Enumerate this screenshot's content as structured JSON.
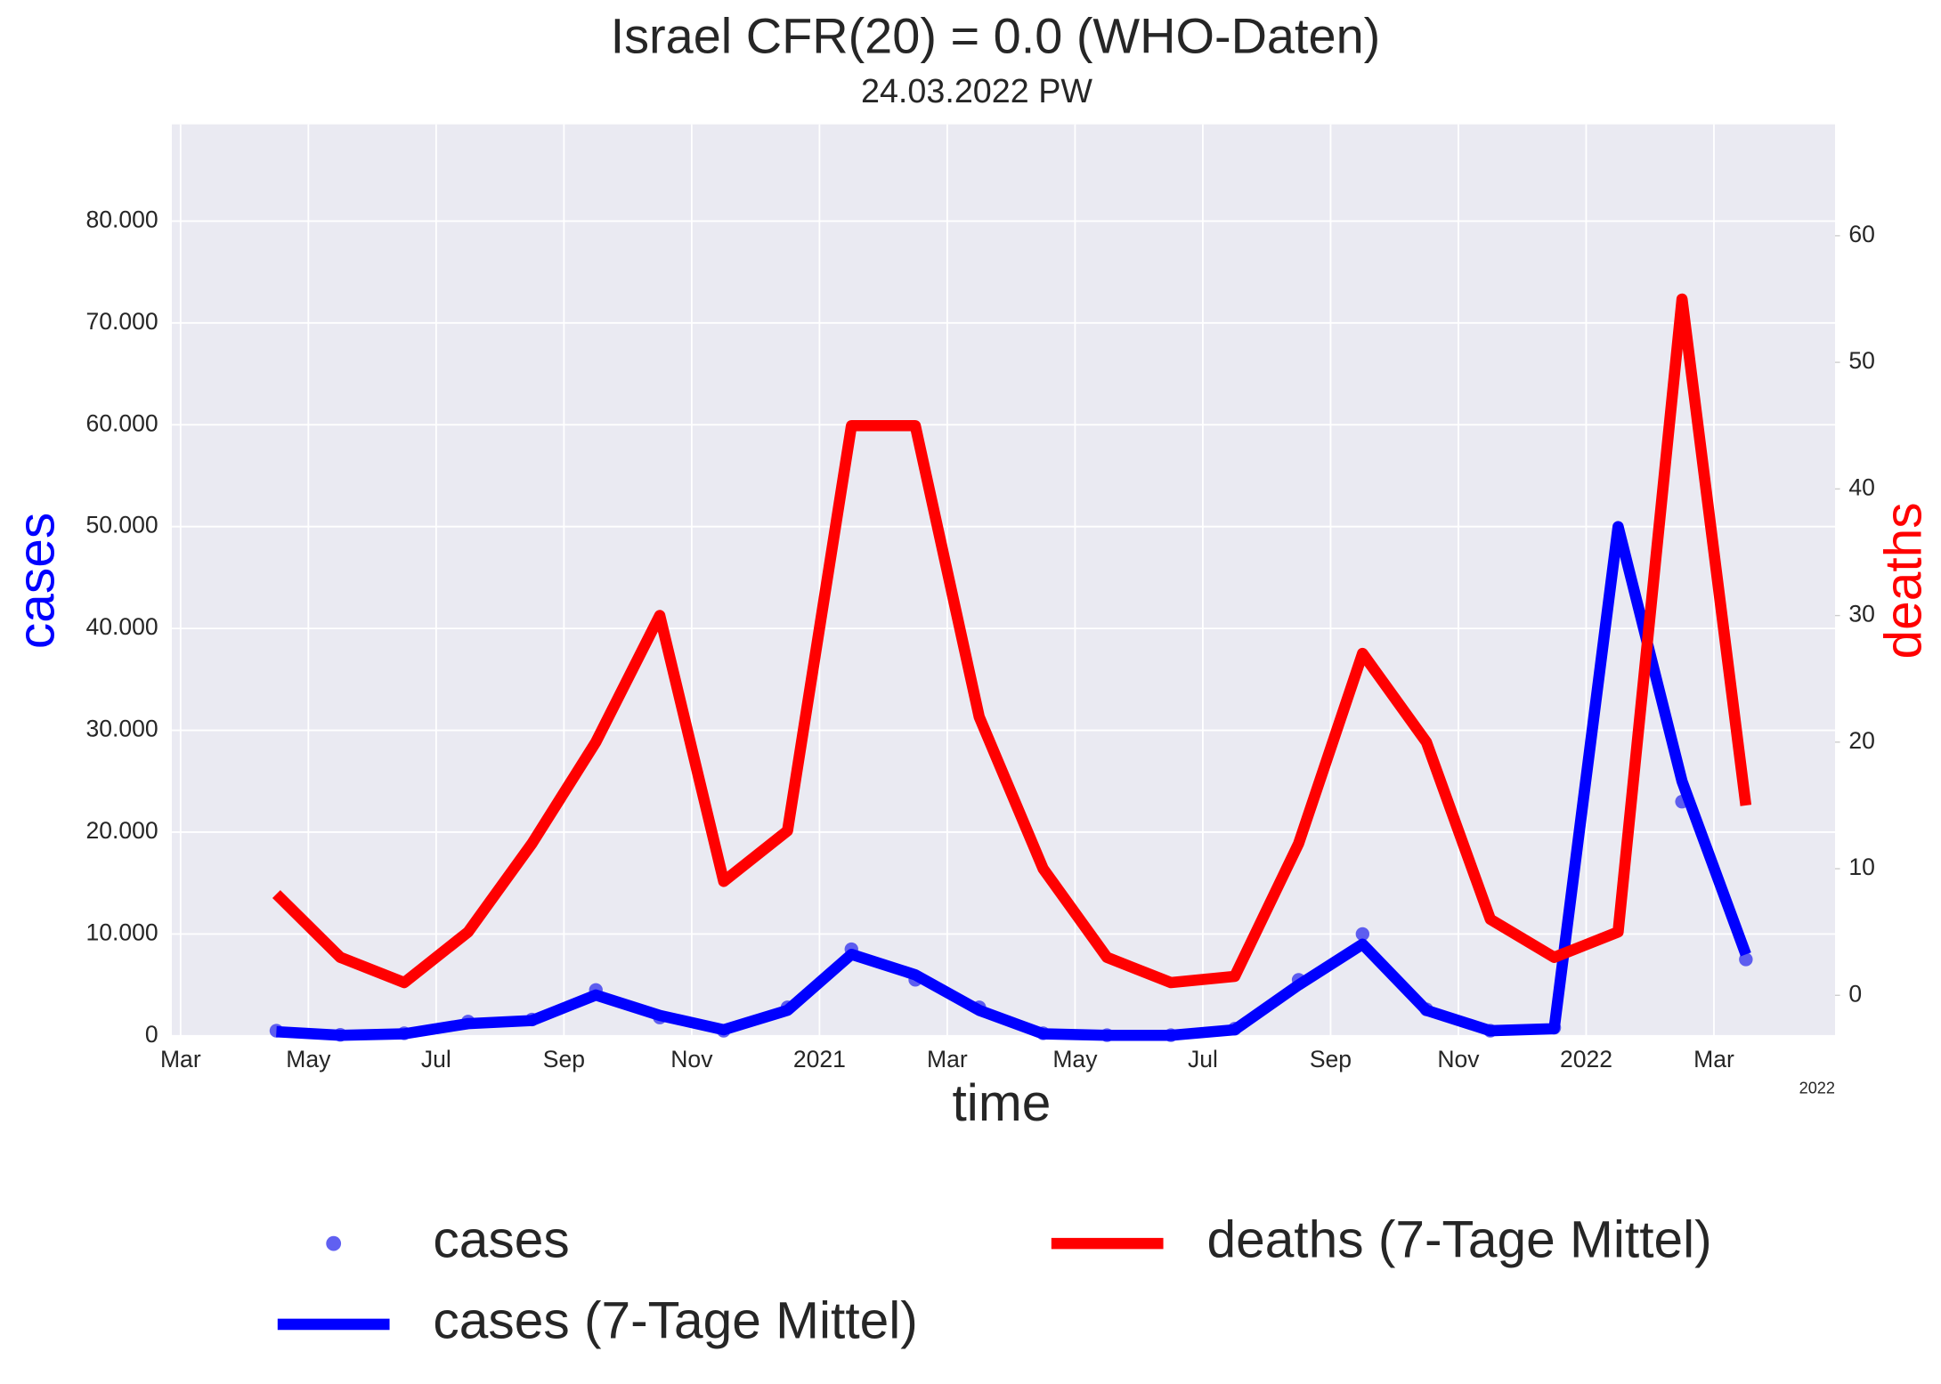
{
  "chart_data": {
    "type": "line",
    "title": "Israel CFR(20) = 0.0  (WHO-Daten)",
    "subtitle": "24.03.2022 PW",
    "x_label": "time",
    "y_label": "cases",
    "y2_label": "deaths",
    "x_offset_label": "2022",
    "x": [
      "2020-04",
      "2020-05",
      "2020-06",
      "2020-07",
      "2020-08",
      "2020-09",
      "2020-10",
      "2020-11",
      "2020-12",
      "2021-01",
      "2021-02",
      "2021-03",
      "2021-04",
      "2021-05",
      "2021-06",
      "2021-07",
      "2021-08",
      "2021-09",
      "2021-10",
      "2021-11",
      "2021-12",
      "2022-01",
      "2022-02",
      "2022-03"
    ],
    "xlim": [
      "2020-03",
      "2022-04"
    ],
    "xticks": [
      {
        "value": "2020-03",
        "label": "Mar"
      },
      {
        "value": "2020-05",
        "label": "May"
      },
      {
        "value": "2020-07",
        "label": "Jul"
      },
      {
        "value": "2020-09",
        "label": "Sep"
      },
      {
        "value": "2020-11",
        "label": "Nov"
      },
      {
        "value": "2021-01",
        "label": "2021"
      },
      {
        "value": "2021-03",
        "label": "Mar"
      },
      {
        "value": "2021-05",
        "label": "May"
      },
      {
        "value": "2021-07",
        "label": "Jul"
      },
      {
        "value": "2021-09",
        "label": "Sep"
      },
      {
        "value": "2021-11",
        "label": "Nov"
      },
      {
        "value": "2022-01",
        "label": "2022"
      },
      {
        "value": "2022-03",
        "label": "Mar"
      }
    ],
    "ylim": [
      0,
      89500
    ],
    "yticks": [
      0,
      {
        "value": 10000,
        "label": "10.000"
      },
      {
        "value": 20000,
        "label": "20.000"
      },
      {
        "value": 30000,
        "label": "30.000"
      },
      {
        "value": 40000,
        "label": "40.000"
      },
      {
        "value": 50000,
        "label": "50.000"
      },
      {
        "value": 60000,
        "label": "60.000"
      },
      {
        "value": 70000,
        "label": "70.000"
      },
      {
        "value": 80000,
        "label": "80.000"
      }
    ],
    "y2lim": [
      -3.2,
      68.8
    ],
    "y2ticks": [
      0,
      10,
      20,
      30,
      40,
      50,
      60
    ],
    "grid": true,
    "legend": "lower center",
    "series": [
      {
        "name": "cases",
        "style": "scatter",
        "color": "#4444ee",
        "values": [
          500,
          100,
          250,
          1400,
          1600,
          4500,
          1800,
          500,
          2800,
          8500,
          5500,
          2800,
          250,
          60,
          60,
          700,
          5500,
          10000,
          2600,
          500,
          800,
          48000,
          23000,
          7500
        ]
      },
      {
        "name": "cases (7-Tage Mittel)",
        "style": "line",
        "color": "#0000ff",
        "values": [
          400,
          50,
          200,
          1200,
          1500,
          4000,
          2000,
          600,
          2500,
          8000,
          6000,
          2500,
          200,
          50,
          50,
          600,
          5000,
          9000,
          2500,
          500,
          700,
          50000,
          25000,
          8000
        ]
      },
      {
        "name": "deaths (7-Tage Mittel)",
        "style": "line",
        "color": "#ff0000",
        "axis": "y2",
        "values": [
          8,
          3,
          1,
          5,
          12,
          20,
          30,
          9,
          13,
          45,
          45,
          22,
          10,
          3,
          1,
          1.5,
          12,
          27,
          20,
          6,
          3,
          5,
          55,
          15
        ]
      }
    ]
  }
}
